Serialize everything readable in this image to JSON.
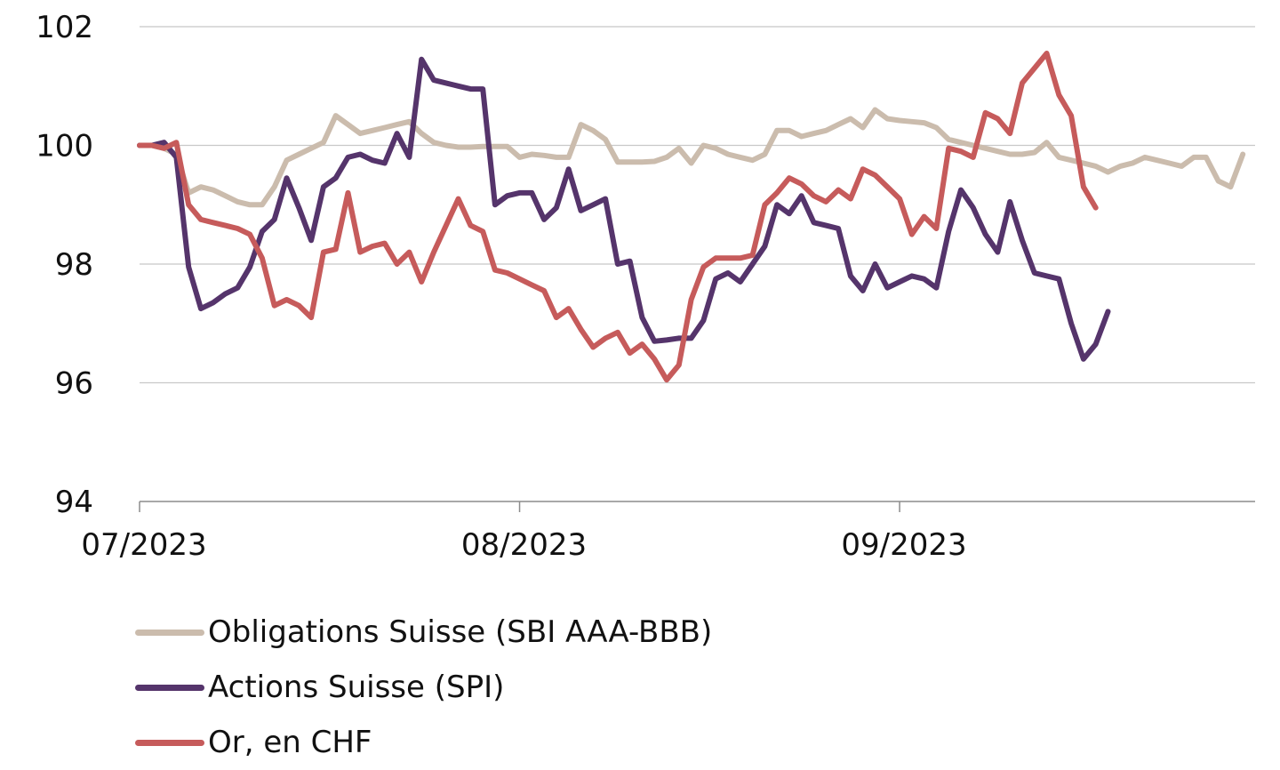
{
  "chart_data": {
    "type": "line",
    "title": "",
    "xlabel": "",
    "ylabel": "",
    "ylim": [
      94,
      102
    ],
    "yticks": [
      94,
      96,
      98,
      100,
      102
    ],
    "x_range": [
      "2023-07-01",
      "2023-09-30"
    ],
    "x_ticks": [
      {
        "date": "2023-07-01",
        "label": "07/2023"
      },
      {
        "date": "2023-08-01",
        "label": "08/2023"
      },
      {
        "date": "2023-09-01",
        "label": "09/2023"
      }
    ],
    "grid": "horizontal",
    "legend_position": "bottom",
    "series": [
      {
        "name": "Obligations Suisse (SBI AAA-BBB)",
        "color": "#cbbcad",
        "points": [
          [
            "2023-07-01",
            100.0
          ],
          [
            "2023-07-02",
            100.0
          ],
          [
            "2023-07-03",
            99.95
          ],
          [
            "2023-07-04",
            99.85
          ],
          [
            "2023-07-05",
            99.2
          ],
          [
            "2023-07-06",
            99.3
          ],
          [
            "2023-07-07",
            99.25
          ],
          [
            "2023-07-08",
            99.15
          ],
          [
            "2023-07-09",
            99.05
          ],
          [
            "2023-07-10",
            99.0
          ],
          [
            "2023-07-11",
            99.0
          ],
          [
            "2023-07-12",
            99.3
          ],
          [
            "2023-07-13",
            99.75
          ],
          [
            "2023-07-14",
            99.85
          ],
          [
            "2023-07-15",
            99.95
          ],
          [
            "2023-07-16",
            100.05
          ],
          [
            "2023-07-17",
            100.5
          ],
          [
            "2023-07-18",
            100.35
          ],
          [
            "2023-07-19",
            100.2
          ],
          [
            "2023-07-20",
            100.25
          ],
          [
            "2023-07-21",
            100.3
          ],
          [
            "2023-07-22",
            100.35
          ],
          [
            "2023-07-23",
            100.4
          ],
          [
            "2023-07-24",
            100.2
          ],
          [
            "2023-07-25",
            100.05
          ],
          [
            "2023-07-26",
            100.0
          ],
          [
            "2023-07-27",
            99.97
          ],
          [
            "2023-07-28",
            99.97
          ],
          [
            "2023-07-29",
            99.98
          ],
          [
            "2023-07-30",
            99.98
          ],
          [
            "2023-07-31",
            99.98
          ],
          [
            "2023-08-01",
            99.8
          ],
          [
            "2023-08-02",
            99.85
          ],
          [
            "2023-08-03",
            99.83
          ],
          [
            "2023-08-04",
            99.8
          ],
          [
            "2023-08-05",
            99.8
          ],
          [
            "2023-08-06",
            100.35
          ],
          [
            "2023-08-07",
            100.25
          ],
          [
            "2023-08-08",
            100.1
          ],
          [
            "2023-08-09",
            99.72
          ],
          [
            "2023-08-10",
            99.72
          ],
          [
            "2023-08-11",
            99.72
          ],
          [
            "2023-08-12",
            99.73
          ],
          [
            "2023-08-13",
            99.8
          ],
          [
            "2023-08-14",
            99.95
          ],
          [
            "2023-08-15",
            99.7
          ],
          [
            "2023-08-16",
            100.0
          ],
          [
            "2023-08-17",
            99.95
          ],
          [
            "2023-08-18",
            99.85
          ],
          [
            "2023-08-19",
            99.8
          ],
          [
            "2023-08-20",
            99.75
          ],
          [
            "2023-08-21",
            99.85
          ],
          [
            "2023-08-22",
            100.25
          ],
          [
            "2023-08-23",
            100.25
          ],
          [
            "2023-08-24",
            100.15
          ],
          [
            "2023-08-25",
            100.2
          ],
          [
            "2023-08-26",
            100.25
          ],
          [
            "2023-08-27",
            100.35
          ],
          [
            "2023-08-28",
            100.45
          ],
          [
            "2023-08-29",
            100.3
          ],
          [
            "2023-08-30",
            100.6
          ],
          [
            "2023-08-31",
            100.45
          ],
          [
            "2023-09-01",
            100.42
          ],
          [
            "2023-09-02",
            100.4
          ],
          [
            "2023-09-03",
            100.38
          ],
          [
            "2023-09-04",
            100.3
          ],
          [
            "2023-09-05",
            100.1
          ],
          [
            "2023-09-06",
            100.05
          ],
          [
            "2023-09-07",
            100.0
          ],
          [
            "2023-09-08",
            99.95
          ],
          [
            "2023-09-09",
            99.9
          ],
          [
            "2023-09-10",
            99.85
          ],
          [
            "2023-09-11",
            99.85
          ],
          [
            "2023-09-12",
            99.88
          ],
          [
            "2023-09-13",
            100.05
          ],
          [
            "2023-09-14",
            99.8
          ],
          [
            "2023-09-15",
            99.75
          ],
          [
            "2023-09-16",
            99.7
          ],
          [
            "2023-09-17",
            99.65
          ],
          [
            "2023-09-18",
            99.55
          ],
          [
            "2023-09-19",
            99.65
          ],
          [
            "2023-09-20",
            99.7
          ],
          [
            "2023-09-21",
            99.8
          ],
          [
            "2023-09-22",
            99.75
          ],
          [
            "2023-09-23",
            99.7
          ],
          [
            "2023-09-24",
            99.65
          ],
          [
            "2023-09-25",
            99.8
          ],
          [
            "2023-09-26",
            99.8
          ],
          [
            "2023-09-27",
            99.4
          ],
          [
            "2023-09-28",
            99.3
          ],
          [
            "2023-09-29",
            99.85
          ]
        ]
      },
      {
        "name": "Actions Suisse (SPI)",
        "color": "#55346b",
        "points": [
          [
            "2023-07-01",
            100.0
          ],
          [
            "2023-07-02",
            100.0
          ],
          [
            "2023-07-03",
            100.05
          ],
          [
            "2023-07-04",
            99.8
          ],
          [
            "2023-07-05",
            97.95
          ],
          [
            "2023-07-06",
            97.25
          ],
          [
            "2023-07-07",
            97.35
          ],
          [
            "2023-07-08",
            97.5
          ],
          [
            "2023-07-09",
            97.6
          ],
          [
            "2023-07-10",
            97.95
          ],
          [
            "2023-07-11",
            98.55
          ],
          [
            "2023-07-12",
            98.75
          ],
          [
            "2023-07-13",
            99.45
          ],
          [
            "2023-07-14",
            98.95
          ],
          [
            "2023-07-15",
            98.4
          ],
          [
            "2023-07-16",
            99.3
          ],
          [
            "2023-07-17",
            99.45
          ],
          [
            "2023-07-18",
            99.8
          ],
          [
            "2023-07-19",
            99.85
          ],
          [
            "2023-07-20",
            99.75
          ],
          [
            "2023-07-21",
            99.7
          ],
          [
            "2023-07-22",
            100.2
          ],
          [
            "2023-07-23",
            99.8
          ],
          [
            "2023-07-24",
            101.45
          ],
          [
            "2023-07-25",
            101.1
          ],
          [
            "2023-07-26",
            101.05
          ],
          [
            "2023-07-27",
            101.0
          ],
          [
            "2023-07-28",
            100.95
          ],
          [
            "2023-07-29",
            100.95
          ],
          [
            "2023-07-30",
            99.0
          ],
          [
            "2023-07-31",
            99.15
          ],
          [
            "2023-08-01",
            99.2
          ],
          [
            "2023-08-02",
            99.2
          ],
          [
            "2023-08-03",
            98.75
          ],
          [
            "2023-08-04",
            98.95
          ],
          [
            "2023-08-05",
            99.6
          ],
          [
            "2023-08-06",
            98.9
          ],
          [
            "2023-08-07",
            99.0
          ],
          [
            "2023-08-08",
            99.1
          ],
          [
            "2023-08-09",
            98.0
          ],
          [
            "2023-08-10",
            98.05
          ],
          [
            "2023-08-11",
            97.1
          ],
          [
            "2023-08-12",
            96.7
          ],
          [
            "2023-08-13",
            96.72
          ],
          [
            "2023-08-14",
            96.75
          ],
          [
            "2023-08-15",
            96.75
          ],
          [
            "2023-08-16",
            97.05
          ],
          [
            "2023-08-17",
            97.75
          ],
          [
            "2023-08-18",
            97.85
          ],
          [
            "2023-08-19",
            97.7
          ],
          [
            "2023-08-20",
            98.0
          ],
          [
            "2023-08-21",
            98.3
          ],
          [
            "2023-08-22",
            99.0
          ],
          [
            "2023-08-23",
            98.85
          ],
          [
            "2023-08-24",
            99.15
          ],
          [
            "2023-08-25",
            98.7
          ],
          [
            "2023-08-26",
            98.65
          ],
          [
            "2023-08-27",
            98.6
          ],
          [
            "2023-08-28",
            97.8
          ],
          [
            "2023-08-29",
            97.55
          ],
          [
            "2023-08-30",
            98.0
          ],
          [
            "2023-08-31",
            97.6
          ],
          [
            "2023-09-01",
            97.7
          ],
          [
            "2023-09-02",
            97.8
          ],
          [
            "2023-09-03",
            97.75
          ],
          [
            "2023-09-04",
            97.6
          ],
          [
            "2023-09-05",
            98.55
          ],
          [
            "2023-09-06",
            99.25
          ],
          [
            "2023-09-07",
            98.95
          ],
          [
            "2023-09-08",
            98.5
          ],
          [
            "2023-09-09",
            98.2
          ],
          [
            "2023-09-10",
            99.05
          ],
          [
            "2023-09-11",
            98.4
          ],
          [
            "2023-09-12",
            97.85
          ],
          [
            "2023-09-13",
            97.8
          ],
          [
            "2023-09-14",
            97.75
          ],
          [
            "2023-09-15",
            97.0
          ],
          [
            "2023-09-16",
            96.4
          ],
          [
            "2023-09-17",
            96.65
          ],
          [
            "2023-09-18",
            97.2
          ]
        ]
      },
      {
        "name": "Or, en CHF",
        "color": "#c65b5b",
        "points": [
          [
            "2023-07-01",
            100.0
          ],
          [
            "2023-07-02",
            100.0
          ],
          [
            "2023-07-03",
            99.95
          ],
          [
            "2023-07-04",
            100.05
          ],
          [
            "2023-07-05",
            99.0
          ],
          [
            "2023-07-06",
            98.75
          ],
          [
            "2023-07-07",
            98.7
          ],
          [
            "2023-07-08",
            98.65
          ],
          [
            "2023-07-09",
            98.6
          ],
          [
            "2023-07-10",
            98.5
          ],
          [
            "2023-07-11",
            98.1
          ],
          [
            "2023-07-12",
            97.3
          ],
          [
            "2023-07-13",
            97.4
          ],
          [
            "2023-07-14",
            97.3
          ],
          [
            "2023-07-15",
            97.1
          ],
          [
            "2023-07-16",
            98.2
          ],
          [
            "2023-07-17",
            98.25
          ],
          [
            "2023-07-18",
            99.2
          ],
          [
            "2023-07-19",
            98.2
          ],
          [
            "2023-07-20",
            98.3
          ],
          [
            "2023-07-21",
            98.35
          ],
          [
            "2023-07-22",
            98.0
          ],
          [
            "2023-07-23",
            98.2
          ],
          [
            "2023-07-24",
            97.7
          ],
          [
            "2023-07-25",
            98.2
          ],
          [
            "2023-07-26",
            98.65
          ],
          [
            "2023-07-27",
            99.1
          ],
          [
            "2023-07-28",
            98.65
          ],
          [
            "2023-07-29",
            98.55
          ],
          [
            "2023-07-30",
            97.9
          ],
          [
            "2023-07-31",
            97.85
          ],
          [
            "2023-08-01",
            97.75
          ],
          [
            "2023-08-02",
            97.65
          ],
          [
            "2023-08-03",
            97.55
          ],
          [
            "2023-08-04",
            97.1
          ],
          [
            "2023-08-05",
            97.25
          ],
          [
            "2023-08-06",
            96.9
          ],
          [
            "2023-08-07",
            96.6
          ],
          [
            "2023-08-08",
            96.75
          ],
          [
            "2023-08-09",
            96.85
          ],
          [
            "2023-08-10",
            96.5
          ],
          [
            "2023-08-11",
            96.65
          ],
          [
            "2023-08-12",
            96.4
          ],
          [
            "2023-08-13",
            96.05
          ],
          [
            "2023-08-14",
            96.3
          ],
          [
            "2023-08-15",
            97.4
          ],
          [
            "2023-08-16",
            97.95
          ],
          [
            "2023-08-17",
            98.1
          ],
          [
            "2023-08-18",
            98.1
          ],
          [
            "2023-08-19",
            98.1
          ],
          [
            "2023-08-20",
            98.15
          ],
          [
            "2023-08-21",
            99.0
          ],
          [
            "2023-08-22",
            99.2
          ],
          [
            "2023-08-23",
            99.45
          ],
          [
            "2023-08-24",
            99.35
          ],
          [
            "2023-08-25",
            99.15
          ],
          [
            "2023-08-26",
            99.05
          ],
          [
            "2023-08-27",
            99.25
          ],
          [
            "2023-08-28",
            99.1
          ],
          [
            "2023-08-29",
            99.6
          ],
          [
            "2023-08-30",
            99.5
          ],
          [
            "2023-08-31",
            99.3
          ],
          [
            "2023-09-01",
            99.1
          ],
          [
            "2023-09-02",
            98.5
          ],
          [
            "2023-09-03",
            98.8
          ],
          [
            "2023-09-04",
            98.6
          ],
          [
            "2023-09-05",
            99.95
          ],
          [
            "2023-09-06",
            99.9
          ],
          [
            "2023-09-07",
            99.8
          ],
          [
            "2023-09-08",
            100.55
          ],
          [
            "2023-09-09",
            100.45
          ],
          [
            "2023-09-10",
            100.2
          ],
          [
            "2023-09-11",
            101.05
          ],
          [
            "2023-09-12",
            101.3
          ],
          [
            "2023-09-13",
            101.55
          ],
          [
            "2023-09-14",
            100.85
          ],
          [
            "2023-09-15",
            100.5
          ],
          [
            "2023-09-16",
            99.3
          ],
          [
            "2023-09-17",
            98.95
          ]
        ]
      }
    ]
  }
}
